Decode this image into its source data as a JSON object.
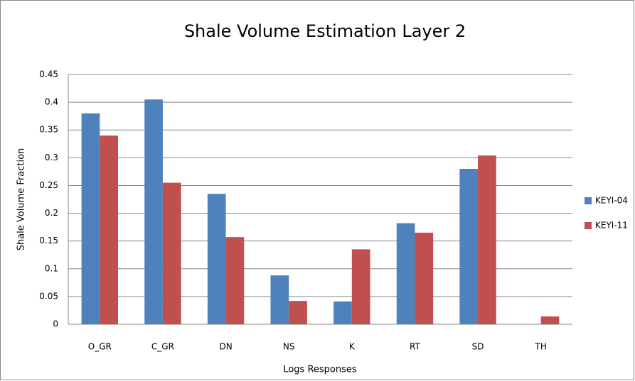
{
  "chart_data": {
    "type": "bar",
    "title": "Shale Volume Estimation Layer 2",
    "x_label": "Logs Responses",
    "y_label": "Shale Volume Fraction",
    "categories": [
      "O_GR",
      "C_GR",
      "DN",
      "NS",
      "K",
      "RT",
      "SD",
      "TH"
    ],
    "series": [
      {
        "name": "KEYI-04",
        "color": "#4f81bd",
        "values": [
          0.38,
          0.405,
          0.235,
          0.088,
          0.041,
          0.182,
          0.28,
          0
        ]
      },
      {
        "name": "KEYI-11",
        "color": "#c0504d",
        "values": [
          0.34,
          0.255,
          0.157,
          0.042,
          0.135,
          0.165,
          0.304,
          0.014
        ]
      }
    ],
    "ylim": [
      0,
      0.45
    ],
    "yticks": [
      0,
      0.05,
      0.1,
      0.15,
      0.2,
      0.25,
      0.3,
      0.35,
      0.4,
      0.45
    ],
    "grid": true,
    "legend": "right"
  }
}
